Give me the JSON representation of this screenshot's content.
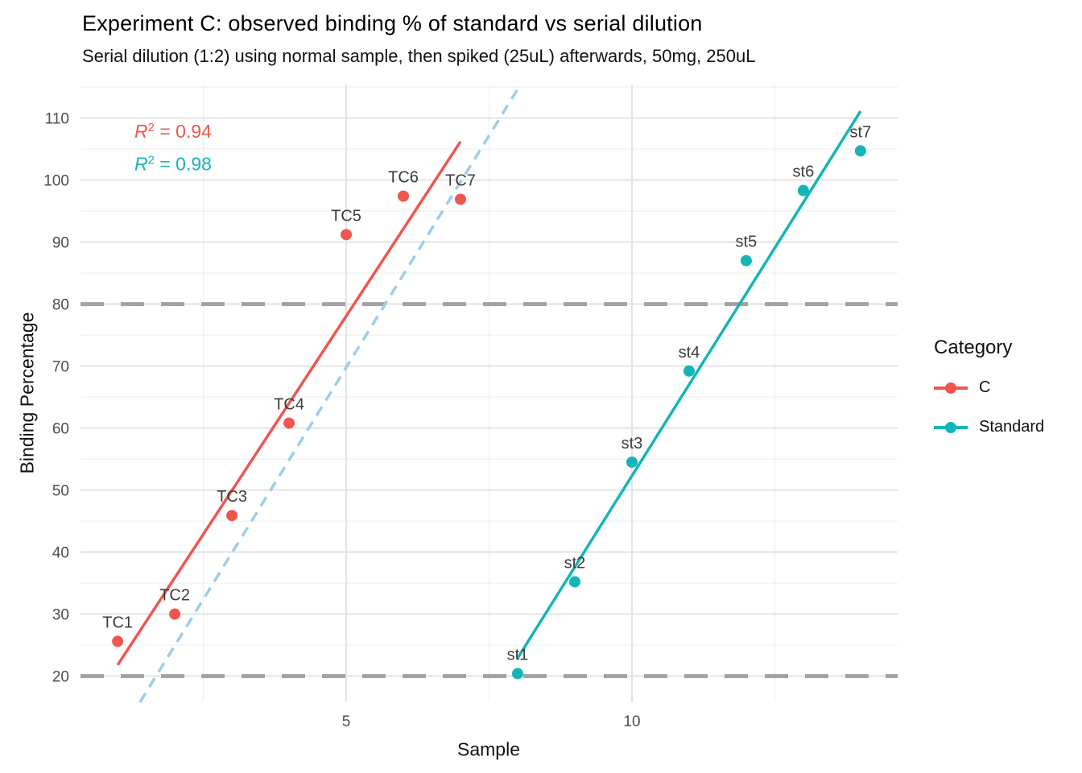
{
  "chart_data": {
    "type": "scatter",
    "title": "Experiment C: observed binding % of standard vs serial dilution",
    "subtitle": "Serial dilution (1:2) using normal sample, then spiked (25uL) afterwards, 50mg, 250uL",
    "xlabel": "Sample",
    "ylabel": "Binding Percentage",
    "xlim": [
      0.35,
      14.65
    ],
    "ylim": [
      15.8,
      115.4
    ],
    "grid": "on",
    "x_ticks": {
      "values": [
        5,
        10
      ],
      "labels": [
        "5",
        "10"
      ]
    },
    "x_minor": [
      2.5,
      7.5,
      12.5
    ],
    "y_ticks": {
      "values": [
        20,
        30,
        40,
        50,
        60,
        70,
        80,
        90,
        100,
        110
      ],
      "labels": [
        "20",
        "30",
        "40",
        "50",
        "60",
        "70",
        "80",
        "90",
        "100",
        "110"
      ]
    },
    "y_minor": [
      25,
      35,
      45,
      55,
      65,
      75,
      85,
      95,
      105,
      115
    ],
    "series": [
      {
        "name": "C",
        "color": "#F0564E",
        "points": [
          {
            "label": "TC1",
            "x": 1,
            "y": 25.6
          },
          {
            "label": "TC2",
            "x": 2,
            "y": 30.0
          },
          {
            "label": "TC3",
            "x": 3,
            "y": 45.9
          },
          {
            "label": "TC4",
            "x": 4,
            "y": 60.8
          },
          {
            "label": "TC5",
            "x": 5,
            "y": 91.2
          },
          {
            "label": "TC6",
            "x": 6,
            "y": 97.4
          },
          {
            "label": "TC7",
            "x": 7,
            "y": 96.9
          }
        ],
        "trendline": {
          "x1": 1,
          "y1": 21.8,
          "x2": 7,
          "y2": 106.2
        },
        "r_squared": "0.94"
      },
      {
        "name": "Standard",
        "color": "#14B5B8",
        "points": [
          {
            "label": "st1",
            "x": 8,
            "y": 20.4
          },
          {
            "label": "st2",
            "x": 9,
            "y": 35.2
          },
          {
            "label": "st3",
            "x": 10,
            "y": 54.5
          },
          {
            "label": "st4",
            "x": 11,
            "y": 69.2
          },
          {
            "label": "st5",
            "x": 12,
            "y": 87.0
          },
          {
            "label": "st6",
            "x": 13,
            "y": 98.3
          },
          {
            "label": "st7",
            "x": 14,
            "y": 104.7
          }
        ],
        "trendline": {
          "x1": 8,
          "y1": 22.9,
          "x2": 14,
          "y2": 111.1
        },
        "r_squared": "0.98"
      }
    ],
    "reference_lines": [
      {
        "axis": "y",
        "value": 20,
        "color": "#A2A2A2",
        "style": "dashed"
      },
      {
        "axis": "y",
        "value": 80,
        "color": "#A2A2A2",
        "style": "dashed"
      }
    ],
    "guide_line": {
      "x1": 1.39,
      "y1": 15.8,
      "x2": 8.05,
      "y2": 115.4,
      "color": "#9DCEE9",
      "style": "dashed"
    },
    "annotations": [
      {
        "label": "R",
        "sup": "2",
        "eq": " = ",
        "value": "0.94",
        "x": 1.97,
        "y": 106.8,
        "color": "#F0564E"
      },
      {
        "label": "R",
        "sup": "2",
        "eq": " = ",
        "value": "0.98",
        "x": 1.97,
        "y": 101.6,
        "color": "#14B5B8"
      }
    ],
    "legend": {
      "title": "Category",
      "position": "right",
      "items": [
        {
          "label": "C",
          "color": "#F0564E"
        },
        {
          "label": "Standard",
          "color": "#14B5B8"
        }
      ]
    },
    "colors": {
      "grid_major": "#E3E3E3",
      "grid_minor": "#F0F0F0",
      "axis_text": "#4D4D4D",
      "point_label": "#3C3C3C",
      "background": "#FFFFFF"
    }
  }
}
